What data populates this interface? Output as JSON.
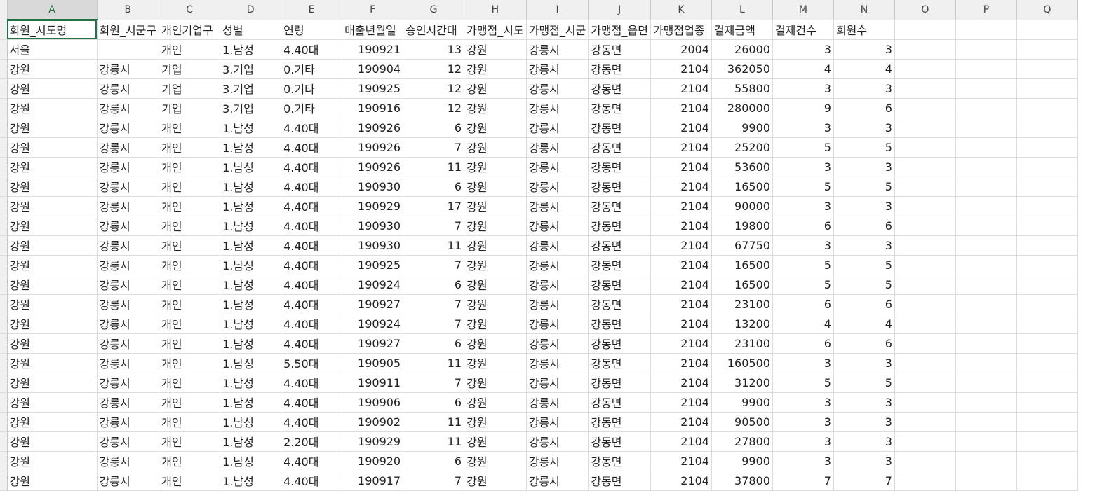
{
  "columns": [
    "A",
    "B",
    "C",
    "D",
    "E",
    "F",
    "G",
    "H",
    "I",
    "J",
    "K",
    "L",
    "M",
    "N",
    "O",
    "P",
    "Q"
  ],
  "active_column": "A",
  "header_row": [
    "회원_시도명",
    "회원_시군구",
    "개인기업구",
    "성별",
    "연령",
    "매출년월일",
    "승인시간대",
    "가맹점_시도",
    "가맹점_시군",
    "가맹점_읍면",
    "가맹점업종",
    "결제금액",
    "결제건수",
    "회원수",
    "",
    "",
    ""
  ],
  "rows": [
    [
      "서울",
      "",
      "개인",
      "1.남성",
      "4.40대",
      "190921",
      "13",
      "강원",
      "강릉시",
      "강동면",
      "2004",
      "26000",
      "3",
      "3"
    ],
    [
      "강원",
      "강릉시",
      "기업",
      "3.기업",
      "0.기타",
      "190904",
      "12",
      "강원",
      "강릉시",
      "강동면",
      "2104",
      "362050",
      "4",
      "4"
    ],
    [
      "강원",
      "강릉시",
      "기업",
      "3.기업",
      "0.기타",
      "190925",
      "12",
      "강원",
      "강릉시",
      "강동면",
      "2104",
      "55800",
      "3",
      "3"
    ],
    [
      "강원",
      "강릉시",
      "기업",
      "3.기업",
      "0.기타",
      "190916",
      "12",
      "강원",
      "강릉시",
      "강동면",
      "2104",
      "280000",
      "9",
      "6"
    ],
    [
      "강원",
      "강릉시",
      "개인",
      "1.남성",
      "4.40대",
      "190926",
      "6",
      "강원",
      "강릉시",
      "강동면",
      "2104",
      "9900",
      "3",
      "3"
    ],
    [
      "강원",
      "강릉시",
      "개인",
      "1.남성",
      "4.40대",
      "190926",
      "7",
      "강원",
      "강릉시",
      "강동면",
      "2104",
      "25200",
      "5",
      "5"
    ],
    [
      "강원",
      "강릉시",
      "개인",
      "1.남성",
      "4.40대",
      "190926",
      "11",
      "강원",
      "강릉시",
      "강동면",
      "2104",
      "53600",
      "3",
      "3"
    ],
    [
      "강원",
      "강릉시",
      "개인",
      "1.남성",
      "4.40대",
      "190930",
      "6",
      "강원",
      "강릉시",
      "강동면",
      "2104",
      "16500",
      "5",
      "5"
    ],
    [
      "강원",
      "강릉시",
      "개인",
      "1.남성",
      "4.40대",
      "190929",
      "17",
      "강원",
      "강릉시",
      "강동면",
      "2104",
      "90000",
      "3",
      "3"
    ],
    [
      "강원",
      "강릉시",
      "개인",
      "1.남성",
      "4.40대",
      "190930",
      "7",
      "강원",
      "강릉시",
      "강동면",
      "2104",
      "19800",
      "6",
      "6"
    ],
    [
      "강원",
      "강릉시",
      "개인",
      "1.남성",
      "4.40대",
      "190930",
      "11",
      "강원",
      "강릉시",
      "강동면",
      "2104",
      "67750",
      "3",
      "3"
    ],
    [
      "강원",
      "강릉시",
      "개인",
      "1.남성",
      "4.40대",
      "190925",
      "7",
      "강원",
      "강릉시",
      "강동면",
      "2104",
      "16500",
      "5",
      "5"
    ],
    [
      "강원",
      "강릉시",
      "개인",
      "1.남성",
      "4.40대",
      "190924",
      "6",
      "강원",
      "강릉시",
      "강동면",
      "2104",
      "16500",
      "5",
      "5"
    ],
    [
      "강원",
      "강릉시",
      "개인",
      "1.남성",
      "4.40대",
      "190927",
      "7",
      "강원",
      "강릉시",
      "강동면",
      "2104",
      "23100",
      "6",
      "6"
    ],
    [
      "강원",
      "강릉시",
      "개인",
      "1.남성",
      "4.40대",
      "190924",
      "7",
      "강원",
      "강릉시",
      "강동면",
      "2104",
      "13200",
      "4",
      "4"
    ],
    [
      "강원",
      "강릉시",
      "개인",
      "1.남성",
      "4.40대",
      "190927",
      "6",
      "강원",
      "강릉시",
      "강동면",
      "2104",
      "23100",
      "6",
      "6"
    ],
    [
      "강원",
      "강릉시",
      "개인",
      "1.남성",
      "5.50대",
      "190905",
      "11",
      "강원",
      "강릉시",
      "강동면",
      "2104",
      "160500",
      "3",
      "3"
    ],
    [
      "강원",
      "강릉시",
      "개인",
      "1.남성",
      "4.40대",
      "190911",
      "7",
      "강원",
      "강릉시",
      "강동면",
      "2104",
      "31200",
      "5",
      "5"
    ],
    [
      "강원",
      "강릉시",
      "개인",
      "1.남성",
      "4.40대",
      "190906",
      "6",
      "강원",
      "강릉시",
      "강동면",
      "2104",
      "9900",
      "3",
      "3"
    ],
    [
      "강원",
      "강릉시",
      "개인",
      "1.남성",
      "4.40대",
      "190902",
      "11",
      "강원",
      "강릉시",
      "강동면",
      "2104",
      "90500",
      "3",
      "3"
    ],
    [
      "강원",
      "강릉시",
      "개인",
      "1.남성",
      "2.20대",
      "190929",
      "11",
      "강원",
      "강릉시",
      "강동면",
      "2104",
      "27800",
      "3",
      "3"
    ],
    [
      "강원",
      "강릉시",
      "개인",
      "1.남성",
      "4.40대",
      "190920",
      "6",
      "강원",
      "강릉시",
      "강동면",
      "2104",
      "9900",
      "3",
      "3"
    ],
    [
      "강원",
      "강릉시",
      "개인",
      "1.남성",
      "4.40대",
      "190917",
      "7",
      "강원",
      "강릉시",
      "강동면",
      "2104",
      "37800",
      "7",
      "7"
    ]
  ],
  "numeric_columns": [
    5,
    6,
    10,
    11,
    12,
    13
  ]
}
